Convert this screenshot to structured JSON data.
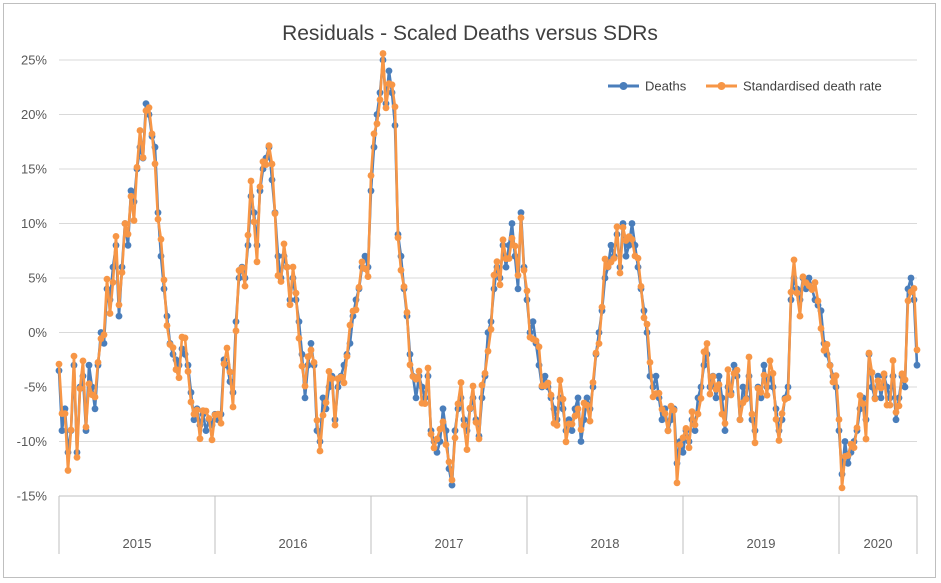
{
  "colors": {
    "deaths": "#4a7ebb",
    "sdr": "#f79646",
    "grid": "#d9d9d9",
    "axis": "#bfbfbf"
  },
  "chart_data": {
    "type": "line",
    "title": "Residuals - Scaled Deaths versus SDRs",
    "xlabel": "",
    "ylabel": "",
    "ylim": [
      -0.15,
      0.25
    ],
    "y_ticks": [
      {
        "v": 0.25,
        "label": "25%"
      },
      {
        "v": 0.2,
        "label": "20%"
      },
      {
        "v": 0.15,
        "label": "15%"
      },
      {
        "v": 0.1,
        "label": "10%"
      },
      {
        "v": 0.05,
        "label": "5%"
      },
      {
        "v": 0.0,
        "label": "0%"
      },
      {
        "v": -0.05,
        "label": "-5%"
      },
      {
        "v": -0.1,
        "label": "-10%"
      },
      {
        "v": -0.15,
        "label": "-15%"
      }
    ],
    "x_unit": "week",
    "x_range": [
      0,
      286
    ],
    "years": [
      {
        "label": "2015",
        "start": 0,
        "end": 52
      },
      {
        "label": "2016",
        "start": 52,
        "end": 104
      },
      {
        "label": "2017",
        "start": 104,
        "end": 156
      },
      {
        "label": "2018",
        "start": 156,
        "end": 208
      },
      {
        "label": "2019",
        "start": 208,
        "end": 260
      },
      {
        "label": "2020",
        "start": 260,
        "end": 286
      }
    ],
    "legend_position": "top-right",
    "series": [
      {
        "name": "Deaths",
        "anchors": [
          [
            0,
            -3.5
          ],
          [
            1,
            -9
          ],
          [
            2,
            -7
          ],
          [
            3,
            -11
          ],
          [
            4,
            -9
          ],
          [
            5,
            -3
          ],
          [
            6,
            -11
          ],
          [
            7,
            -5
          ],
          [
            8,
            -4
          ],
          [
            9,
            -9
          ],
          [
            10,
            -3
          ],
          [
            11,
            -5
          ],
          [
            12,
            -7
          ],
          [
            13,
            -3
          ],
          [
            14,
            0
          ],
          [
            15,
            -1
          ],
          [
            16,
            4
          ],
          [
            17,
            3
          ],
          [
            18,
            6
          ],
          [
            19,
            8
          ],
          [
            20,
            1.5
          ],
          [
            21,
            6
          ],
          [
            22,
            10
          ],
          [
            23,
            8
          ],
          [
            24,
            13
          ],
          [
            25,
            12
          ],
          [
            26,
            15
          ],
          [
            27,
            17
          ],
          [
            28,
            16
          ],
          [
            29,
            21
          ],
          [
            30,
            20
          ],
          [
            31,
            18
          ],
          [
            32,
            17
          ],
          [
            33,
            11
          ],
          [
            34,
            7
          ],
          [
            35,
            4
          ],
          [
            36,
            1.5
          ],
          [
            37,
            -1
          ],
          [
            38,
            -2
          ],
          [
            39,
            -2.5
          ],
          [
            40,
            -3
          ],
          [
            41,
            -1.5
          ],
          [
            42,
            -2
          ],
          [
            43,
            -3
          ],
          [
            44,
            -5.5
          ],
          [
            45,
            -8
          ],
          [
            46,
            -7
          ],
          [
            47,
            -8.5
          ],
          [
            48,
            -7.5
          ],
          [
            49,
            -9
          ],
          [
            50,
            -8
          ],
          [
            51,
            -8.5
          ],
          [
            52,
            -7.5
          ],
          [
            53,
            -8
          ],
          [
            54,
            -7.5
          ],
          [
            55,
            -2.5
          ],
          [
            56,
            -3
          ],
          [
            57,
            -4.5
          ],
          [
            58,
            -5.5
          ],
          [
            59,
            1
          ],
          [
            60,
            5
          ],
          [
            61,
            6
          ],
          [
            62,
            5
          ],
          [
            63,
            8
          ],
          [
            64,
            12.5
          ],
          [
            65,
            11
          ],
          [
            66,
            8
          ],
          [
            67,
            13
          ],
          [
            68,
            15
          ],
          [
            69,
            16
          ],
          [
            70,
            17
          ],
          [
            71,
            14
          ],
          [
            72,
            11
          ],
          [
            73,
            7
          ],
          [
            74,
            5
          ],
          [
            75,
            7
          ],
          [
            76,
            6
          ],
          [
            77,
            3
          ],
          [
            78,
            5
          ],
          [
            79,
            3
          ],
          [
            80,
            1
          ],
          [
            81,
            -2
          ],
          [
            82,
            -6
          ],
          [
            83,
            -3
          ],
          [
            84,
            -1
          ],
          [
            85,
            -3
          ],
          [
            86,
            -9
          ],
          [
            87,
            -10
          ],
          [
            88,
            -6
          ],
          [
            89,
            -7
          ],
          [
            90,
            -5
          ],
          [
            91,
            -4
          ],
          [
            92,
            -8
          ],
          [
            93,
            -5
          ],
          [
            94,
            -4
          ],
          [
            95,
            -3
          ],
          [
            96,
            -2
          ],
          [
            97,
            -1
          ],
          [
            98,
            1.5
          ],
          [
            99,
            3
          ],
          [
            100,
            4
          ],
          [
            101,
            6
          ],
          [
            102,
            7
          ],
          [
            103,
            6
          ],
          [
            104,
            13
          ],
          [
            105,
            17
          ],
          [
            106,
            20
          ],
          [
            107,
            22
          ],
          [
            108,
            25
          ],
          [
            109,
            21
          ],
          [
            110,
            24
          ],
          [
            111,
            22
          ],
          [
            112,
            19
          ],
          [
            113,
            9
          ],
          [
            114,
            7
          ],
          [
            115,
            4
          ],
          [
            116,
            1.5
          ],
          [
            117,
            -2
          ],
          [
            118,
            -4
          ],
          [
            119,
            -6
          ],
          [
            120,
            -4
          ],
          [
            121,
            -5
          ],
          [
            122,
            -6
          ],
          [
            123,
            -4
          ],
          [
            124,
            -9
          ],
          [
            125,
            -10
          ],
          [
            126,
            -11
          ],
          [
            127,
            -10
          ],
          [
            128,
            -7
          ],
          [
            129,
            -9
          ],
          [
            130,
            -12.5
          ],
          [
            131,
            -14
          ],
          [
            132,
            -9
          ],
          [
            133,
            -7
          ],
          [
            134,
            -6
          ],
          [
            135,
            -8
          ],
          [
            136,
            -9
          ],
          [
            137,
            -7
          ],
          [
            138,
            -6
          ],
          [
            139,
            -8
          ],
          [
            140,
            -9.5
          ],
          [
            141,
            -6
          ],
          [
            142,
            -4
          ],
          [
            143,
            0
          ],
          [
            144,
            1
          ],
          [
            145,
            4
          ],
          [
            146,
            6
          ],
          [
            147,
            5
          ],
          [
            148,
            8
          ],
          [
            149,
            6
          ],
          [
            150,
            8
          ],
          [
            151,
            10
          ],
          [
            152,
            7
          ],
          [
            153,
            4
          ],
          [
            154,
            11
          ],
          [
            155,
            6
          ],
          [
            156,
            3
          ],
          [
            157,
            0
          ],
          [
            158,
            1
          ],
          [
            159,
            -1
          ],
          [
            160,
            -3
          ],
          [
            161,
            -5
          ],
          [
            162,
            -4
          ],
          [
            163,
            -5
          ],
          [
            164,
            -6
          ],
          [
            165,
            -7
          ],
          [
            166,
            -8
          ],
          [
            167,
            -6
          ],
          [
            168,
            -7
          ],
          [
            169,
            -9
          ],
          [
            170,
            -8
          ],
          [
            171,
            -9
          ],
          [
            172,
            -7
          ],
          [
            173,
            -6
          ],
          [
            174,
            -10
          ],
          [
            175,
            -8
          ],
          [
            176,
            -6
          ],
          [
            177,
            -7
          ],
          [
            178,
            -5
          ],
          [
            179,
            -2
          ],
          [
            180,
            0
          ],
          [
            181,
            2
          ],
          [
            182,
            5
          ],
          [
            183,
            6
          ],
          [
            184,
            8
          ],
          [
            185,
            7
          ],
          [
            186,
            9
          ],
          [
            187,
            6
          ],
          [
            188,
            10
          ],
          [
            189,
            7
          ],
          [
            190,
            8
          ],
          [
            191,
            10
          ],
          [
            192,
            8
          ],
          [
            193,
            6
          ],
          [
            194,
            4
          ],
          [
            195,
            2
          ],
          [
            196,
            0
          ],
          [
            197,
            -4
          ],
          [
            198,
            -5
          ],
          [
            199,
            -4
          ],
          [
            200,
            -6
          ],
          [
            201,
            -8
          ],
          [
            202,
            -7
          ],
          [
            203,
            -9
          ],
          [
            204,
            -8
          ],
          [
            205,
            -7
          ],
          [
            206,
            -12
          ],
          [
            207,
            -10
          ],
          [
            208,
            -11
          ],
          [
            209,
            -9
          ],
          [
            210,
            -10
          ],
          [
            211,
            -8
          ],
          [
            212,
            -9
          ],
          [
            213,
            -6
          ],
          [
            214,
            -5
          ],
          [
            215,
            -3
          ],
          [
            216,
            -2
          ],
          [
            217,
            -5
          ],
          [
            218,
            -4
          ],
          [
            219,
            -6
          ],
          [
            220,
            -4
          ],
          [
            221,
            -6
          ],
          [
            222,
            -9
          ],
          [
            223,
            -5
          ],
          [
            224,
            -5.5
          ],
          [
            225,
            -3
          ],
          [
            226,
            -4
          ],
          [
            227,
            -8
          ],
          [
            228,
            -5
          ],
          [
            229,
            -6
          ],
          [
            230,
            -4
          ],
          [
            231,
            -8
          ],
          [
            232,
            -9
          ],
          [
            233,
            -5
          ],
          [
            234,
            -6
          ],
          [
            235,
            -3
          ],
          [
            236,
            -5
          ],
          [
            237,
            -4
          ],
          [
            238,
            -5
          ],
          [
            239,
            -7
          ],
          [
            240,
            -9
          ],
          [
            241,
            -8
          ],
          [
            242,
            -6
          ],
          [
            243,
            -5
          ],
          [
            244,
            3
          ],
          [
            245,
            5
          ],
          [
            246,
            4
          ],
          [
            247,
            3
          ],
          [
            248,
            5
          ],
          [
            249,
            4
          ],
          [
            250,
            5
          ]
        ]
      },
      {
        "name": "Standardised death rate",
        "anchors": []
      }
    ]
  }
}
